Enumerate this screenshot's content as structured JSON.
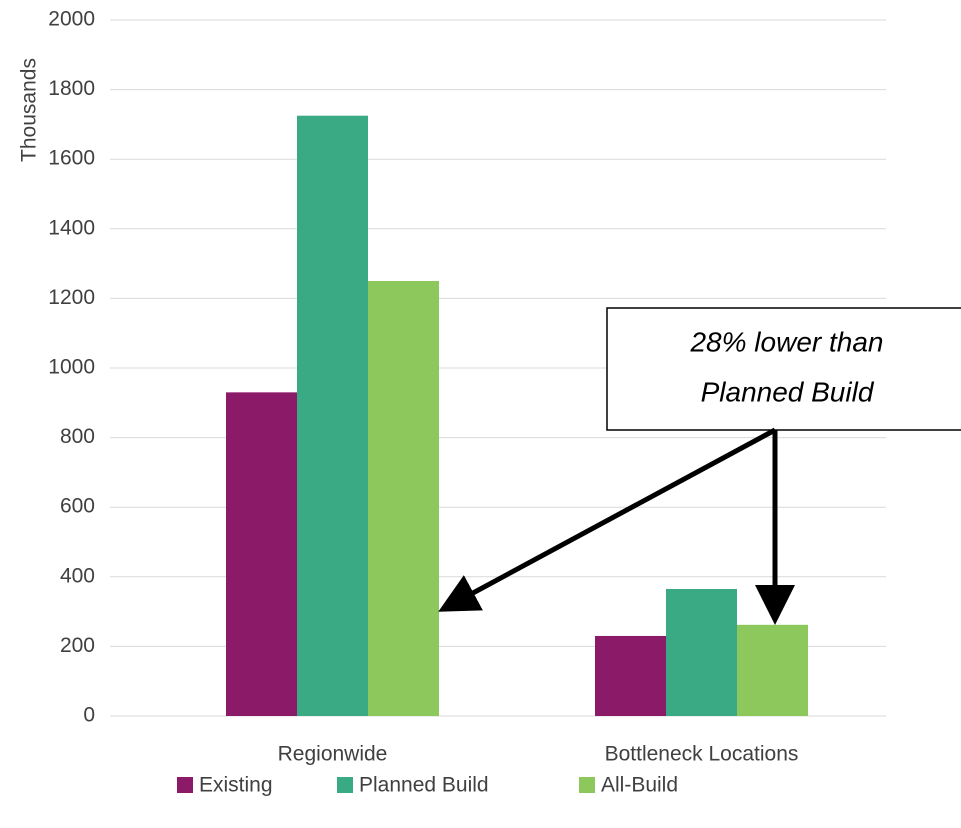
{
  "chart_data": {
    "type": "bar",
    "y_axis_label": "Thousands",
    "categories": [
      "Regionwide",
      "Bottleneck Locations"
    ],
    "series": [
      {
        "name": "Existing",
        "color": "#8b1a68",
        "values": [
          930,
          230
        ]
      },
      {
        "name": "Planned Build",
        "color": "#3aaa85",
        "values": [
          1725,
          365
        ]
      },
      {
        "name": "All-Build",
        "color": "#8dc85c",
        "values": [
          1250,
          262
        ]
      }
    ],
    "ylim": [
      0,
      2000
    ],
    "yticks": [
      0,
      200,
      400,
      600,
      800,
      1000,
      1200,
      1400,
      1600,
      1800,
      2000
    ],
    "grid": true,
    "legend": "bottom",
    "annotations": [
      "28% lower than",
      "Planned Build"
    ]
  }
}
